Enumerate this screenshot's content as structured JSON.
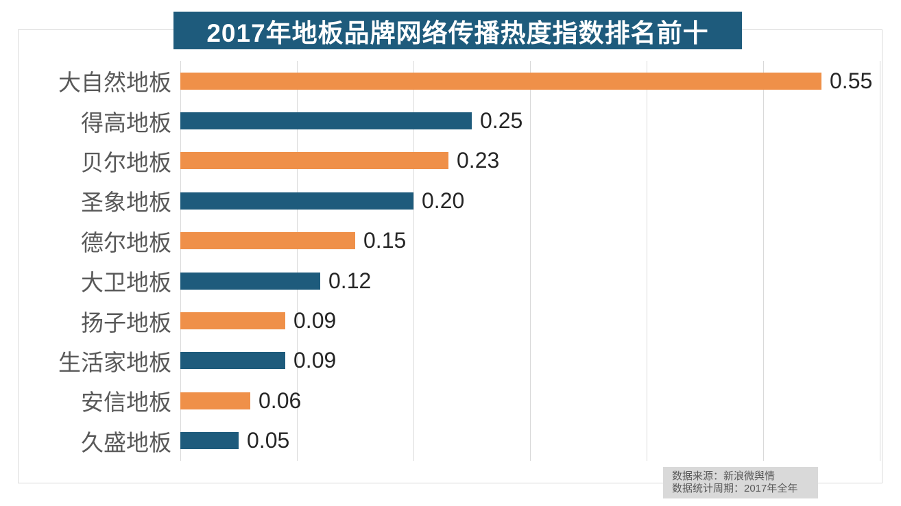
{
  "title": "2017年地板品牌网络传播热度指数排名前十",
  "colors": {
    "banner_bg": "#1e5b7c",
    "bar_orange": "#ef9049",
    "bar_blue": "#1e5b7c",
    "gridline": "#d9d9d9",
    "frame_border": "#d9d9d9",
    "category_text": "#595959",
    "value_text": "#262626",
    "note_bg": "#d9d9d9",
    "note_text": "#595959"
  },
  "chart_data": {
    "type": "bar",
    "orientation": "horizontal",
    "title": "2017年地板品牌网络传播热度指数排名前十",
    "categories": [
      "大自然地板",
      "得高地板",
      "贝尔地板",
      "圣象地板",
      "德尔地板",
      "大卫地板",
      "扬子地板",
      "生活家地板",
      "安信地板",
      "久盛地板"
    ],
    "values": [
      0.55,
      0.25,
      0.23,
      0.2,
      0.15,
      0.12,
      0.09,
      0.09,
      0.06,
      0.05
    ],
    "value_labels": [
      "0.55",
      "0.25",
      "0.23",
      "0.20",
      "0.15",
      "0.12",
      "0.09",
      "0.09",
      "0.06",
      "0.05"
    ],
    "bar_colors": [
      "#ef9049",
      "#1e5b7c",
      "#ef9049",
      "#1e5b7c",
      "#ef9049",
      "#1e5b7c",
      "#ef9049",
      "#1e5b7c",
      "#ef9049",
      "#1e5b7c"
    ],
    "xlabel": "",
    "ylabel": "",
    "xlim": [
      0,
      0.6
    ],
    "gridline_interval": 0.1,
    "grid": "vertical-only",
    "legend": "none",
    "tick_labels_shown": false
  },
  "footer": {
    "source_line": "数据来源：新浪微舆情",
    "period_line": "数据统计周期：2017年全年"
  }
}
